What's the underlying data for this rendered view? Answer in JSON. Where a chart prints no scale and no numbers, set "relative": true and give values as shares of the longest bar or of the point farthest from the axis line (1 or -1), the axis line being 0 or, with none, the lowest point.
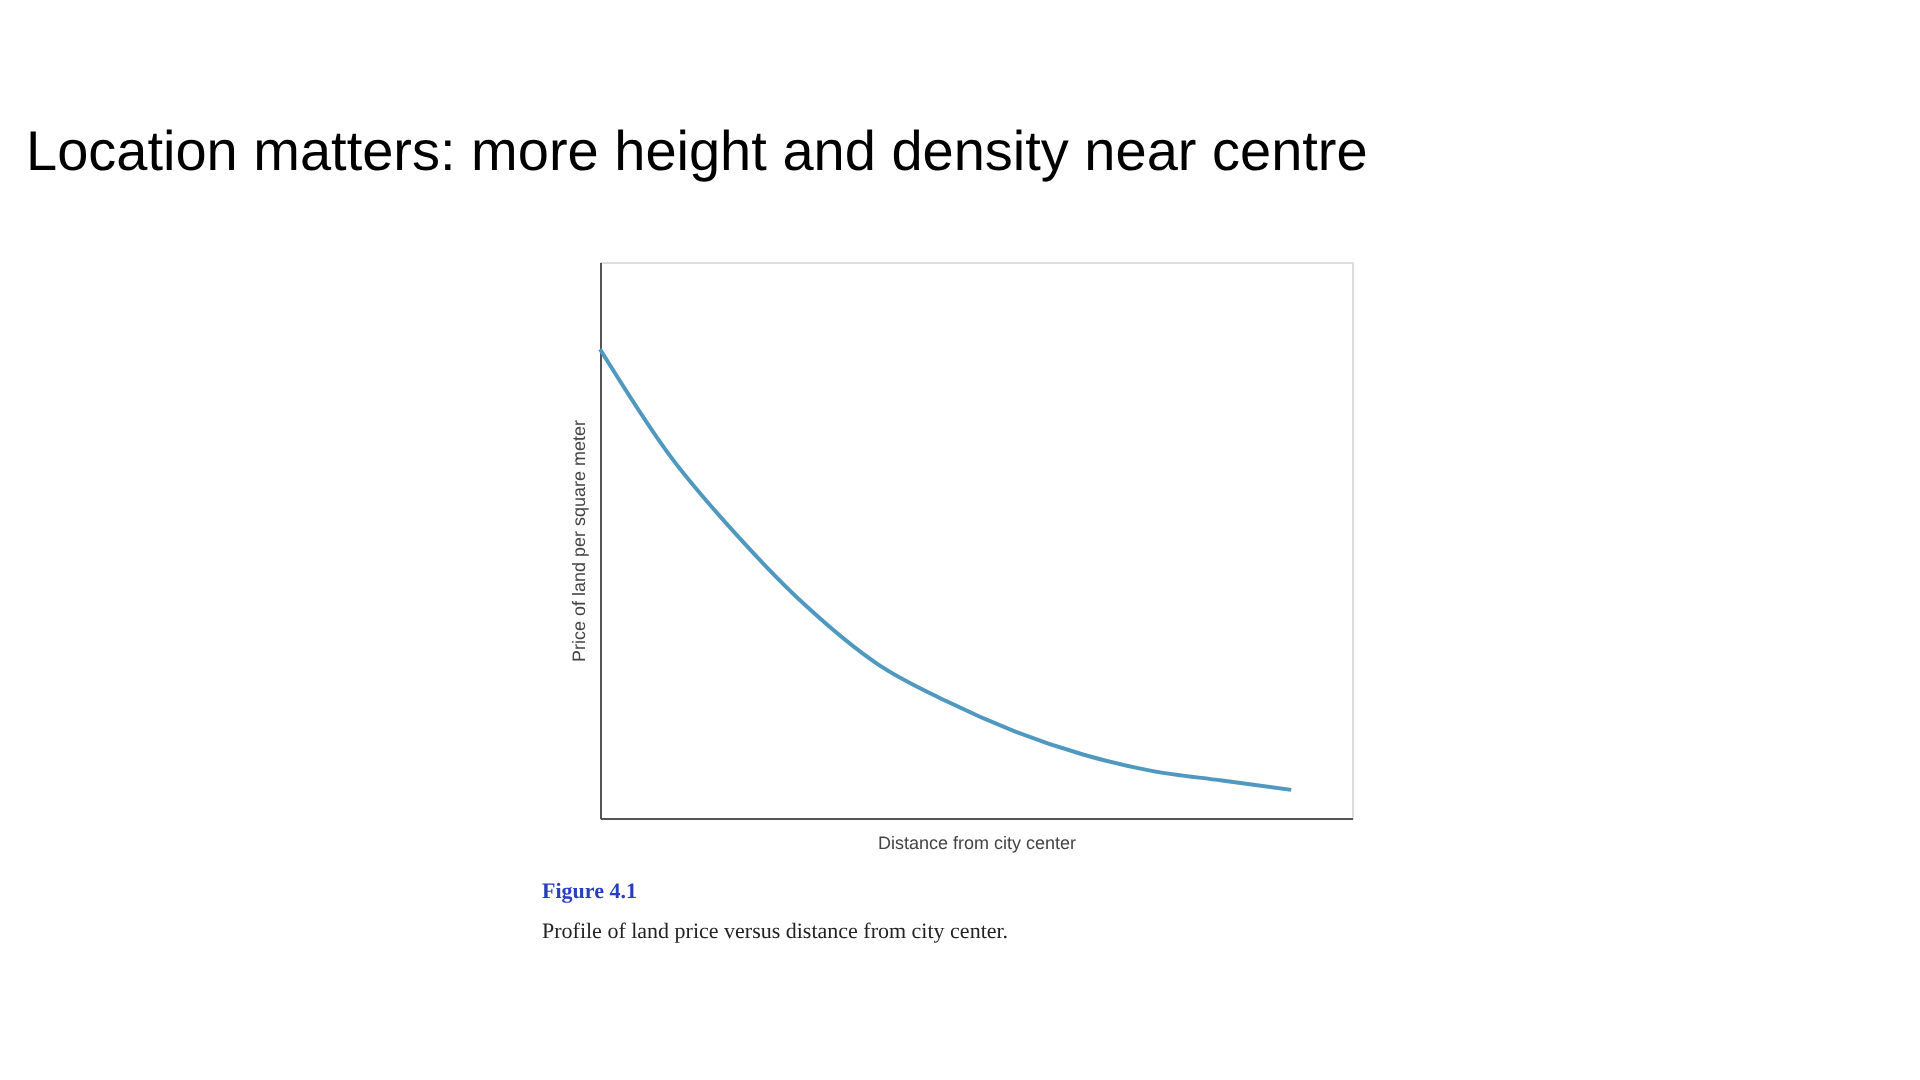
{
  "chart_data": {
    "type": "line",
    "title": "Location matters: more height and density near centre",
    "xlabel": "Distance from city center",
    "ylabel": "Price of land per square meter",
    "relative": true,
    "categories": [
      null,
      null,
      null,
      null,
      null,
      null,
      null,
      null,
      null,
      null,
      null
    ],
    "series": [
      {
        "color": "#4f98c0",
        "values": [
          1,
          0.775,
          0.6,
          0.45,
          0.33,
          0.25,
          0.185,
          0.135,
          0.1,
          0.08,
          0.06
        ]
      }
    ],
    "marker": "none",
    "line_style": "solid",
    "grid": false,
    "annotations": [
      "Figure 4.1",
      "Profile of land price versus distance from city center."
    ]
  }
}
